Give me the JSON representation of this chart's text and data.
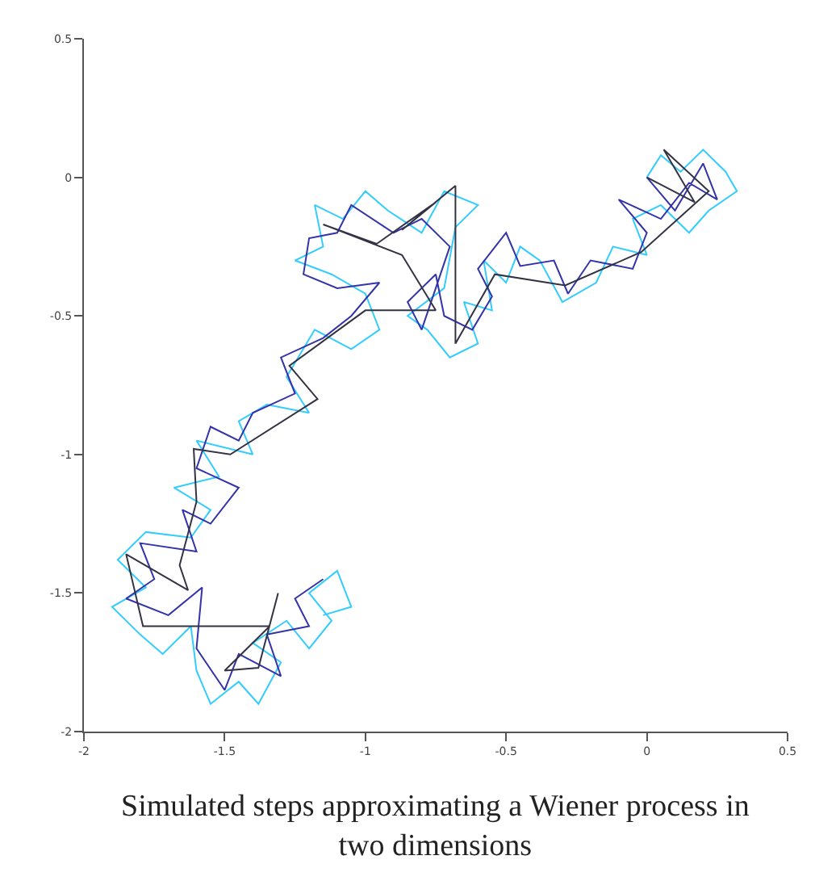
{
  "chart_data": {
    "type": "line",
    "annotations": [
      "Simulated steps approximating a Wiener process in two dimensions"
    ],
    "xlim": [
      -2,
      0.5
    ],
    "xticks": [
      -2,
      -1.5,
      -1,
      -0.5,
      0,
      0.5
    ],
    "ylim": [
      -2,
      0.5
    ],
    "yticks": [
      -2,
      -1.5,
      -1,
      -0.5,
      0,
      0.5
    ],
    "grid": false,
    "marker": "none",
    "line_style": "solid",
    "series": [
      {
        "color": "#33ccff",
        "x": [
          0,
          0.05,
          0.12,
          0.2,
          0.28,
          0.32,
          0.22,
          0.15,
          0.05,
          -0.05,
          0.0,
          -0.12,
          -0.18,
          -0.3,
          -0.38,
          -0.45,
          -0.5,
          -0.58,
          -0.55,
          -0.65,
          -0.6,
          -0.7,
          -0.78,
          -0.85,
          -0.72,
          -0.68,
          -0.6,
          -0.72,
          -0.8,
          -0.92,
          -1.0,
          -1.08,
          -1.18,
          -1.15,
          -1.25,
          -1.12,
          -1.0,
          -0.95,
          -1.05,
          -1.18,
          -1.28,
          -1.2,
          -1.35,
          -1.45,
          -1.4,
          -1.6,
          -1.52,
          -1.68,
          -1.55,
          -1.62,
          -1.78,
          -1.88,
          -1.78,
          -1.9,
          -1.8,
          -1.72,
          -1.62,
          -1.6,
          -1.55,
          -1.45,
          -1.38,
          -1.3,
          -1.4,
          -1.28,
          -1.2,
          -1.12,
          -1.2,
          -1.1,
          -1.05,
          -1.15
        ],
        "values": [
          0,
          0.08,
          0.02,
          0.1,
          0.02,
          -0.05,
          -0.12,
          -0.2,
          -0.1,
          -0.15,
          -0.28,
          -0.25,
          -0.38,
          -0.45,
          -0.3,
          -0.25,
          -0.38,
          -0.3,
          -0.48,
          -0.45,
          -0.6,
          -0.65,
          -0.55,
          -0.5,
          -0.4,
          -0.18,
          -0.1,
          -0.05,
          -0.2,
          -0.12,
          -0.05,
          -0.15,
          -0.1,
          -0.25,
          -0.3,
          -0.35,
          -0.42,
          -0.55,
          -0.62,
          -0.55,
          -0.72,
          -0.85,
          -0.82,
          -0.88,
          -1.0,
          -0.95,
          -1.08,
          -1.12,
          -1.2,
          -1.3,
          -1.28,
          -1.38,
          -1.48,
          -1.55,
          -1.65,
          -1.72,
          -1.62,
          -1.78,
          -1.9,
          -1.82,
          -1.9,
          -1.75,
          -1.68,
          -1.6,
          -1.7,
          -1.6,
          -1.5,
          -1.42,
          -1.55,
          -1.58
        ]
      },
      {
        "color": "#3333aa",
        "x": [
          0,
          0.1,
          0.2,
          0.25,
          0.15,
          0.05,
          -0.1,
          0.0,
          -0.05,
          -0.2,
          -0.28,
          -0.33,
          -0.45,
          -0.5,
          -0.6,
          -0.55,
          -0.62,
          -0.72,
          -0.75,
          -0.85,
          -0.8,
          -0.7,
          -0.8,
          -0.9,
          -1.05,
          -1.1,
          -1.2,
          -1.22,
          -1.1,
          -0.95,
          -1.05,
          -1.15,
          -1.3,
          -1.25,
          -1.4,
          -1.45,
          -1.55,
          -1.6,
          -1.45,
          -1.55,
          -1.65,
          -1.6,
          -1.8,
          -1.75,
          -1.85,
          -1.7,
          -1.58,
          -1.6,
          -1.5,
          -1.45,
          -1.3,
          -1.35,
          -1.2,
          -1.25,
          -1.15
        ],
        "values": [
          0,
          -0.12,
          0.05,
          -0.08,
          -0.02,
          -0.15,
          -0.08,
          -0.2,
          -0.33,
          -0.3,
          -0.42,
          -0.3,
          -0.32,
          -0.2,
          -0.33,
          -0.43,
          -0.55,
          -0.5,
          -0.35,
          -0.45,
          -0.55,
          -0.25,
          -0.15,
          -0.2,
          -0.1,
          -0.2,
          -0.22,
          -0.35,
          -0.4,
          -0.38,
          -0.5,
          -0.58,
          -0.65,
          -0.78,
          -0.85,
          -0.95,
          -0.9,
          -1.05,
          -1.12,
          -1.25,
          -1.2,
          -1.35,
          -1.32,
          -1.45,
          -1.52,
          -1.58,
          -1.48,
          -1.7,
          -1.85,
          -1.72,
          -1.8,
          -1.65,
          -1.62,
          -1.52,
          -1.45
        ]
      },
      {
        "color": "#333344",
        "x": [
          0,
          0.17,
          0.06,
          0.22,
          -0.02,
          -0.29,
          -0.54,
          -0.68,
          -0.68,
          -0.87,
          -0.75,
          -0.96,
          -1.15,
          -0.87,
          -0.75,
          -1.0,
          -1.27,
          -1.17,
          -1.48,
          -1.61,
          -1.6,
          -1.66,
          -1.63,
          -1.85,
          -1.79,
          -1.34,
          -1.5,
          -1.38,
          -1.31
        ],
        "values": [
          0,
          -0.09,
          0.1,
          -0.05,
          -0.27,
          -0.39,
          -0.35,
          -0.6,
          -0.03,
          -0.19,
          -0.09,
          -0.24,
          -0.17,
          -0.28,
          -0.48,
          -0.48,
          -0.68,
          -0.8,
          -1.0,
          -0.98,
          -1.17,
          -1.4,
          -1.49,
          -1.36,
          -1.62,
          -1.62,
          -1.78,
          -1.77,
          -1.5
        ]
      }
    ]
  }
}
